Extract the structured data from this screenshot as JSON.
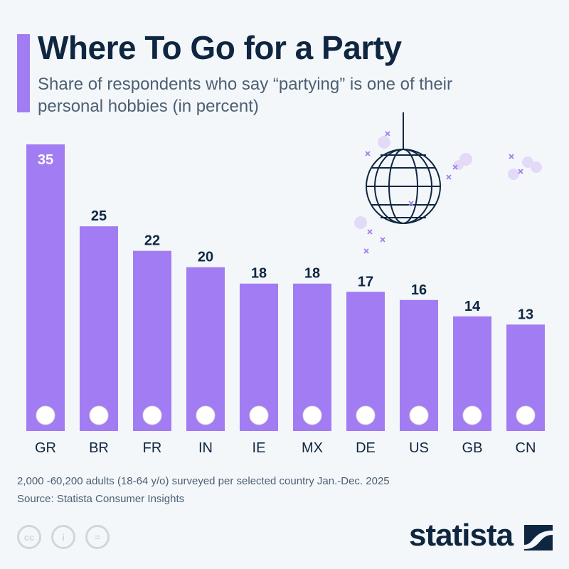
{
  "title": "Where To Go for a Party",
  "subtitle": "Share of respondents who say “partying” is one of their personal hobbies (in percent)",
  "chart_data": {
    "type": "bar",
    "categories": [
      "GR",
      "BR",
      "FR",
      "IN",
      "IE",
      "MX",
      "DE",
      "US",
      "GB",
      "CN"
    ],
    "values": [
      35,
      25,
      22,
      20,
      18,
      18,
      17,
      16,
      14,
      13
    ],
    "ylim": [
      0,
      35
    ],
    "grid": false,
    "bar_color": "#a27cf2",
    "data_labels": true
  },
  "footer": {
    "note": "2,000 -60,200 adults (18-64 y/o) surveyed per selected country Jan.-Dec. 2025",
    "source": "Source: Statista Consumer Insights",
    "logo": "statista",
    "license_icons": [
      "cc-icon",
      "attribution-icon",
      "no-derivatives-icon"
    ]
  }
}
